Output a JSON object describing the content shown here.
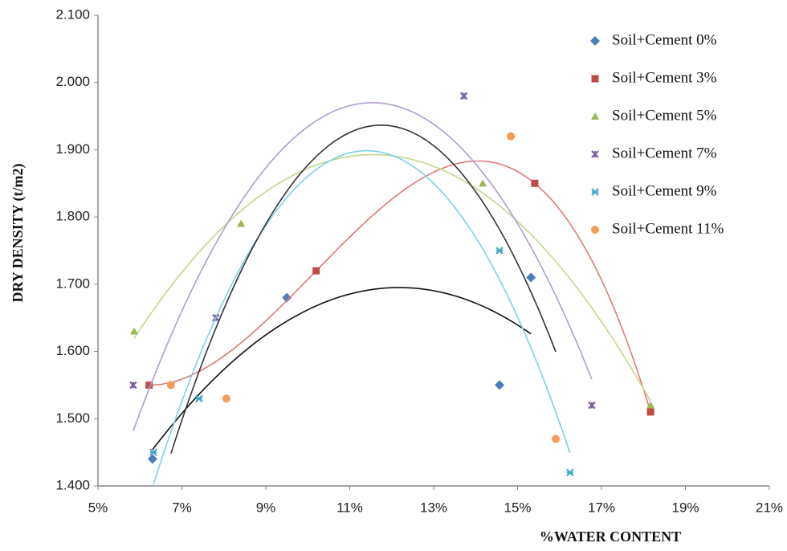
{
  "chart_data": {
    "type": "scatter",
    "x_label": "%WATER CONTENT",
    "y_label": "DRY DENSITY (t/m2)",
    "xlim": [
      5,
      21
    ],
    "ylim": [
      1.4,
      2.1
    ],
    "xticks": [
      {
        "value": 5,
        "label": "5%"
      },
      {
        "value": 7,
        "label": "7%"
      },
      {
        "value": 9,
        "label": "9%"
      },
      {
        "value": 11,
        "label": "11%"
      },
      {
        "value": 13,
        "label": "13%"
      },
      {
        "value": 15,
        "label": "15%"
      },
      {
        "value": 17,
        "label": "17%"
      },
      {
        "value": 19,
        "label": "19%"
      },
      {
        "value": 21,
        "label": "21%"
      }
    ],
    "yticks": [
      {
        "value": 1.4,
        "label": "1.400"
      },
      {
        "value": 1.5,
        "label": "1.500"
      },
      {
        "value": 1.6,
        "label": "1.600"
      },
      {
        "value": 1.7,
        "label": "1.700"
      },
      {
        "value": 1.8,
        "label": "1.800"
      },
      {
        "value": 1.9,
        "label": "1.900"
      },
      {
        "value": 2.0,
        "label": "2.000"
      },
      {
        "value": 2.1,
        "label": "2.100"
      }
    ],
    "grid": false,
    "legend": "upper right",
    "series": [
      {
        "name": "Soil+Cement 0%",
        "color": "#4a7ebb",
        "marker": "diamond",
        "trend_color": "#111111",
        "trend_order": 2,
        "x": [
          6.3,
          9.5,
          14.57,
          15.32
        ],
        "values": [
          1.44,
          1.68,
          1.55,
          1.71
        ]
      },
      {
        "name": "Soil+Cement 3%",
        "color": "#be4b48",
        "marker": "square",
        "trend_color": "#e07a78",
        "trend_order": 3,
        "x": [
          6.22,
          10.2,
          15.41,
          18.17
        ],
        "values": [
          1.55,
          1.72,
          1.85,
          1.51
        ]
      },
      {
        "name": "Soil+Cement 5%",
        "color": "#98b954",
        "marker": "triangle",
        "trend_color": "#c2d88e",
        "trend_order": 2,
        "x": [
          5.86,
          8.41,
          14.17,
          18.17
        ],
        "values": [
          1.63,
          1.79,
          1.85,
          1.52
        ]
      },
      {
        "name": "Soil+Cement 7%",
        "color": "#7d60a0",
        "marker": "asterisk",
        "trend_color": "#b09ccf",
        "trend_order": 2,
        "x": [
          5.84,
          7.81,
          13.72,
          16.77
        ],
        "values": [
          1.55,
          1.65,
          1.98,
          1.52
        ]
      },
      {
        "name": "Soil+Cement 9%",
        "color": "#46aac5",
        "marker": "star",
        "trend_color": "#7fd0e6",
        "trend_order": 2,
        "x": [
          6.32,
          7.41,
          14.57,
          16.25
        ],
        "values": [
          1.45,
          1.53,
          1.75,
          1.42
        ]
      },
      {
        "name": "Soil+Cement 11%",
        "color": "#f59d56",
        "marker": "circle",
        "trend_color": "#333333",
        "trend_order": 2,
        "x": [
          6.74,
          8.06,
          14.84,
          15.91
        ],
        "values": [
          1.55,
          1.53,
          1.92,
          1.47
        ]
      }
    ]
  }
}
